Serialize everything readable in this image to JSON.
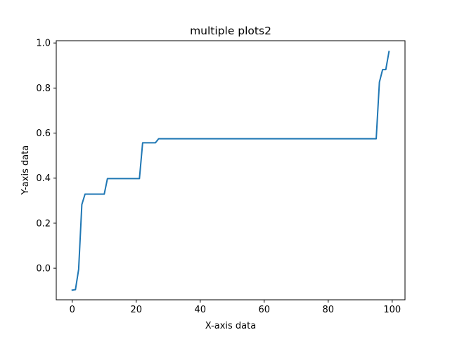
{
  "chart_data": {
    "type": "line",
    "title": "multiple plots2",
    "xlabel": "X-axis data",
    "ylabel": "Y-axis data",
    "xlim": [
      -5,
      104
    ],
    "ylim": [
      -0.14,
      1.01
    ],
    "grid": false,
    "x_ticks": [
      0,
      20,
      40,
      60,
      80,
      100
    ],
    "y_ticks": [
      0.0,
      0.2,
      0.4,
      0.6,
      0.8,
      1.0
    ],
    "x_tick_labels": [
      "0",
      "20",
      "40",
      "60",
      "80",
      "100"
    ],
    "y_tick_labels": [
      "0.0",
      "0.2",
      "0.4",
      "0.6",
      "0.8",
      "1.0"
    ],
    "series": [
      {
        "color": "#1f77b4",
        "x": [
          0,
          1,
          2,
          3,
          4,
          10,
          11,
          21,
          22,
          26,
          27,
          95,
          96,
          97,
          98,
          99
        ],
        "y": [
          -0.097,
          -0.095,
          -0.005,
          0.283,
          0.329,
          0.329,
          0.398,
          0.398,
          0.557,
          0.557,
          0.575,
          0.575,
          0.826,
          0.882,
          0.882,
          0.962
        ]
      }
    ]
  }
}
